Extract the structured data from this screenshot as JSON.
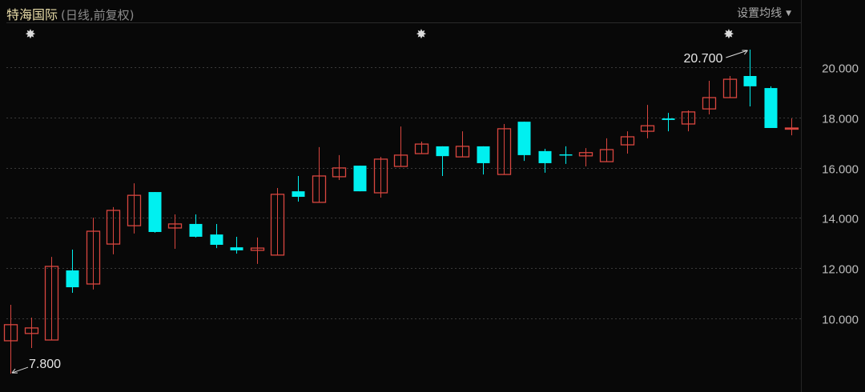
{
  "header": {
    "stock_name": "特海国际",
    "subtitle": "(日线,前复权)",
    "ma_button": "设置均线",
    "caret_icon": "caret-down-icon"
  },
  "chart_data": {
    "type": "candlestick",
    "title": "",
    "xlabel": "",
    "ylabel": "",
    "ylim": [
      7.07,
      21.72
    ],
    "grid": true,
    "y_ticks": [
      "10.000",
      "12.000",
      "14.000",
      "16.000",
      "18.000",
      "20.000"
    ],
    "y_tick_values": [
      10,
      12,
      14,
      16,
      18,
      20
    ],
    "colors": {
      "up": "#d9463f",
      "down": "#00f0f0",
      "background": "#080808",
      "grid": "#3a3a3a"
    },
    "annotations": [
      {
        "label": "20.700",
        "candle_index": 36,
        "value": 20.7,
        "kind": "high"
      },
      {
        "label": "7.800",
        "candle_index": 0,
        "value": 7.8,
        "kind": "low"
      }
    ],
    "event_markers": [
      {
        "candle_index": 1,
        "icon": "star-icon"
      },
      {
        "candle_index": 20,
        "icon": "star-icon"
      },
      {
        "candle_index": 35,
        "icon": "star-icon"
      }
    ],
    "candles": [
      {
        "o": 9.11,
        "h": 10.54,
        "l": 7.8,
        "c": 9.75
      },
      {
        "o": 9.4,
        "h": 10.03,
        "l": 8.82,
        "c": 9.62
      },
      {
        "o": 9.14,
        "h": 12.45,
        "l": 9.14,
        "c": 12.07
      },
      {
        "o": 11.91,
        "h": 12.74,
        "l": 11.02,
        "c": 11.24
      },
      {
        "o": 11.37,
        "h": 14.01,
        "l": 11.15,
        "c": 13.47
      },
      {
        "o": 12.96,
        "h": 14.43,
        "l": 12.55,
        "c": 14.3
      },
      {
        "o": 13.69,
        "h": 15.38,
        "l": 13.38,
        "c": 14.9
      },
      {
        "o": 15.03,
        "h": 15.03,
        "l": 13.41,
        "c": 13.44
      },
      {
        "o": 13.6,
        "h": 14.14,
        "l": 12.77,
        "c": 13.76
      },
      {
        "o": 13.76,
        "h": 14.14,
        "l": 13.22,
        "c": 13.25
      },
      {
        "o": 13.34,
        "h": 13.76,
        "l": 12.8,
        "c": 12.93
      },
      {
        "o": 12.83,
        "h": 13.25,
        "l": 12.58,
        "c": 12.71
      },
      {
        "o": 12.71,
        "h": 13.22,
        "l": 12.17,
        "c": 12.8
      },
      {
        "o": 12.52,
        "h": 15.19,
        "l": 12.52,
        "c": 14.94
      },
      {
        "o": 15.06,
        "h": 15.67,
        "l": 14.65,
        "c": 14.84
      },
      {
        "o": 14.62,
        "h": 16.82,
        "l": 14.62,
        "c": 15.67
      },
      {
        "o": 15.64,
        "h": 16.5,
        "l": 15.51,
        "c": 15.99
      },
      {
        "o": 16.08,
        "h": 16.08,
        "l": 15.06,
        "c": 15.06
      },
      {
        "o": 15.0,
        "h": 16.43,
        "l": 14.81,
        "c": 16.34
      },
      {
        "o": 16.05,
        "h": 17.64,
        "l": 16.05,
        "c": 16.5
      },
      {
        "o": 16.56,
        "h": 17.04,
        "l": 16.56,
        "c": 16.94
      },
      {
        "o": 16.85,
        "h": 16.85,
        "l": 15.67,
        "c": 16.46
      },
      {
        "o": 16.43,
        "h": 17.45,
        "l": 16.43,
        "c": 16.85
      },
      {
        "o": 16.85,
        "h": 16.85,
        "l": 15.73,
        "c": 16.18
      },
      {
        "o": 15.73,
        "h": 17.74,
        "l": 15.73,
        "c": 17.55
      },
      {
        "o": 17.83,
        "h": 17.83,
        "l": 16.27,
        "c": 16.5
      },
      {
        "o": 16.66,
        "h": 16.75,
        "l": 15.8,
        "c": 16.18
      },
      {
        "o": 16.53,
        "h": 16.85,
        "l": 16.15,
        "c": 16.5
      },
      {
        "o": 16.47,
        "h": 16.78,
        "l": 16.05,
        "c": 16.6
      },
      {
        "o": 16.24,
        "h": 17.17,
        "l": 16.24,
        "c": 16.72
      },
      {
        "o": 16.91,
        "h": 17.45,
        "l": 16.56,
        "c": 17.23
      },
      {
        "o": 17.45,
        "h": 18.5,
        "l": 17.17,
        "c": 17.67
      },
      {
        "o": 17.96,
        "h": 18.18,
        "l": 17.45,
        "c": 17.9
      },
      {
        "o": 17.74,
        "h": 18.28,
        "l": 17.45,
        "c": 18.22
      },
      {
        "o": 18.34,
        "h": 19.46,
        "l": 18.12,
        "c": 18.79
      },
      {
        "o": 18.79,
        "h": 19.65,
        "l": 18.79,
        "c": 19.52
      },
      {
        "o": 19.65,
        "h": 20.7,
        "l": 18.44,
        "c": 19.24
      },
      {
        "o": 19.17,
        "h": 19.24,
        "l": 17.58,
        "c": 17.58
      },
      {
        "o": 17.55,
        "h": 17.96,
        "l": 17.29,
        "c": 17.58
      }
    ]
  }
}
